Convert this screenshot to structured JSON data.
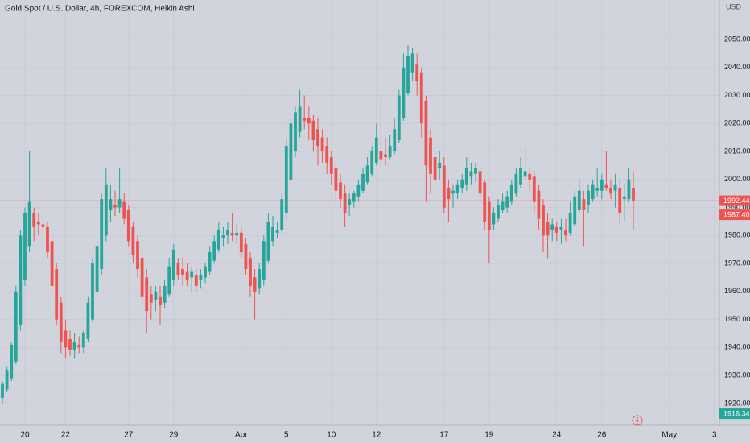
{
  "chart_data": {
    "type": "candlestick",
    "title": "Gold Spot / U.S. Dollar, 4h, FOREXCOM, Heikin Ashi",
    "currency": "USD",
    "up_color": "#26a69a",
    "down_color": "#ef5350",
    "grid": true,
    "ylim": [
      1914.5,
      2064.1
    ],
    "yticks": [
      {
        "value": 1920,
        "label": "1920.00"
      },
      {
        "value": 1930,
        "label": "1930.00"
      },
      {
        "value": 1940,
        "label": "1940.00"
      },
      {
        "value": 1950,
        "label": "1950.00"
      },
      {
        "value": 1960,
        "label": "1960.00"
      },
      {
        "value": 1970,
        "label": "1970.00"
      },
      {
        "value": 1980,
        "label": "1980.00"
      },
      {
        "value": 1990,
        "label": "1990.00"
      },
      {
        "value": 2000,
        "label": "2000.00"
      },
      {
        "value": 2010,
        "label": "2010.00"
      },
      {
        "value": 2020,
        "label": "2020.00"
      },
      {
        "value": 2030,
        "label": "2030.00"
      },
      {
        "value": 2040,
        "label": "2040.00"
      },
      {
        "value": 2050,
        "label": "2050.00"
      }
    ],
    "xticks": [
      {
        "value": 5,
        "label": "20"
      },
      {
        "value": 14,
        "label": "22"
      },
      {
        "value": 28,
        "label": "27"
      },
      {
        "value": 38,
        "label": "29"
      },
      {
        "value": 53,
        "label": "Apr"
      },
      {
        "value": 63,
        "label": "5"
      },
      {
        "value": 73,
        "label": "10"
      },
      {
        "value": 83,
        "label": "12"
      },
      {
        "value": 98,
        "label": "17"
      },
      {
        "value": 108,
        "label": "19"
      },
      {
        "value": 123,
        "label": "24"
      },
      {
        "value": 133,
        "label": "26"
      },
      {
        "value": 148,
        "label": "May"
      },
      {
        "value": 158,
        "label": "3"
      }
    ],
    "price_labels": [
      {
        "value": 1992.44,
        "label": "1992.44",
        "color": "#ef5350",
        "line": true
      },
      {
        "value": 1987.4,
        "label": "1987.40",
        "color": "#ef5350"
      },
      {
        "value": 1916.34,
        "label": "1916.34",
        "color": "#26a69a"
      }
    ],
    "ohlc": [
      [
        1922,
        1928,
        1920,
        1927
      ],
      [
        1925,
        1933,
        1924,
        1932
      ],
      [
        1929,
        1942,
        1928,
        1941
      ],
      [
        1935,
        1962,
        1934,
        1960
      ],
      [
        1948,
        1982,
        1946,
        1980
      ],
      [
        1964,
        1990,
        1962,
        1988
      ],
      [
        1976,
        2010,
        1974,
        1992
      ],
      [
        1988,
        1990,
        1978,
        1983
      ],
      [
        1985,
        1988,
        1980,
        1984
      ],
      [
        1984,
        1987,
        1980,
        1983
      ],
      [
        1983,
        1985,
        1972,
        1974
      ],
      [
        1978,
        1980,
        1960,
        1962
      ],
      [
        1968,
        1970,
        1948,
        1950
      ],
      [
        1956,
        1958,
        1938,
        1942
      ],
      [
        1946,
        1950,
        1936,
        1940
      ],
      [
        1943,
        1946,
        1937,
        1939
      ],
      [
        1939,
        1945,
        1936,
        1942
      ],
      [
        1941,
        1944,
        1938,
        1940
      ],
      [
        1940,
        1946,
        1938,
        1945
      ],
      [
        1943,
        1958,
        1942,
        1956
      ],
      [
        1950,
        1972,
        1949,
        1970
      ],
      [
        1960,
        1978,
        1958,
        1976
      ],
      [
        1968,
        1995,
        1966,
        1993
      ],
      [
        1980,
        2004,
        1978,
        1998
      ],
      [
        1989,
        1998,
        1985,
        1993
      ],
      [
        1991,
        1996,
        1987,
        1990
      ],
      [
        1990,
        2004,
        1988,
        1993
      ],
      [
        1992,
        1995,
        1984,
        1986
      ],
      [
        1989,
        1991,
        1976,
        1978
      ],
      [
        1983,
        1985,
        1970,
        1973
      ],
      [
        1978,
        1980,
        1965,
        1968
      ],
      [
        1972,
        1974,
        1955,
        1958
      ],
      [
        1965,
        1968,
        1945,
        1953
      ],
      [
        1959,
        1962,
        1950,
        1956
      ],
      [
        1957,
        1962,
        1953,
        1960
      ],
      [
        1958,
        1962,
        1948,
        1955
      ],
      [
        1956,
        1964,
        1954,
        1962
      ],
      [
        1959,
        1972,
        1958,
        1969
      ],
      [
        1964,
        1977,
        1962,
        1975
      ],
      [
        1970,
        1972,
        1964,
        1966
      ],
      [
        1968,
        1972,
        1962,
        1966
      ],
      [
        1967,
        1970,
        1962,
        1964
      ],
      [
        1965,
        1969,
        1960,
        1967
      ],
      [
        1966,
        1968,
        1960,
        1962
      ],
      [
        1964,
        1968,
        1961,
        1966
      ],
      [
        1965,
        1970,
        1963,
        1969
      ],
      [
        1967,
        1976,
        1966,
        1974
      ],
      [
        1971,
        1980,
        1970,
        1978
      ],
      [
        1975,
        1985,
        1974,
        1982
      ],
      [
        1979,
        1983,
        1976,
        1980
      ],
      [
        1980,
        1985,
        1977,
        1982
      ],
      [
        1981,
        1988,
        1978,
        1980
      ],
      [
        1980,
        1984,
        1977,
        1981
      ],
      [
        1981,
        1983,
        1972,
        1974
      ],
      [
        1977,
        1979,
        1966,
        1968
      ],
      [
        1972,
        1974,
        1958,
        1962
      ],
      [
        1965,
        1968,
        1950,
        1960
      ],
      [
        1961,
        1970,
        1959,
        1968
      ],
      [
        1964,
        1980,
        1962,
        1978
      ],
      [
        1971,
        1988,
        1970,
        1985
      ],
      [
        1978,
        1987,
        1976,
        1983
      ],
      [
        1981,
        1985,
        1979,
        1982
      ],
      [
        1982,
        1995,
        1981,
        1993
      ],
      [
        1988,
        2015,
        1986,
        2012
      ],
      [
        2000,
        2022,
        1998,
        2020
      ],
      [
        2010,
        2026,
        2008,
        2024
      ],
      [
        2017,
        2032,
        2015,
        2026
      ],
      [
        2022,
        2030,
        2018,
        2021
      ],
      [
        2022,
        2026,
        2014,
        2020
      ],
      [
        2021,
        2023,
        2010,
        2014
      ],
      [
        2018,
        2022,
        2005,
        2012
      ],
      [
        2015,
        2018,
        2006,
        2010
      ],
      [
        2012,
        2015,
        2002,
        2006
      ],
      [
        2008,
        2010,
        1998,
        2002
      ],
      [
        2004,
        2006,
        1992,
        1996
      ],
      [
        1999,
        2002,
        1990,
        1993
      ],
      [
        1995,
        1998,
        1983,
        1988
      ],
      [
        1991,
        1995,
        1987,
        1993
      ],
      [
        1992,
        1996,
        1990,
        1995
      ],
      [
        1994,
        2000,
        1992,
        1998
      ],
      [
        1996,
        2004,
        1995,
        2002
      ],
      [
        1999,
        2008,
        1998,
        2005
      ],
      [
        2002,
        2012,
        2001,
        2010
      ],
      [
        2006,
        2020,
        2005,
        2015
      ],
      [
        2010,
        2028,
        2004,
        2007
      ],
      [
        2009,
        2015,
        2005,
        2008
      ],
      [
        2008,
        2016,
        2007,
        2012
      ],
      [
        2010,
        2022,
        2009,
        2018
      ],
      [
        2014,
        2032,
        2013,
        2030
      ],
      [
        2022,
        2045,
        2021,
        2040
      ],
      [
        2031,
        2048,
        2030,
        2044
      ],
      [
        2038,
        2047,
        2035,
        2045
      ],
      [
        2041,
        2045,
        2030,
        2035
      ],
      [
        2038,
        2040,
        2015,
        2020
      ],
      [
        2028,
        2030,
        1992,
        2005
      ],
      [
        2015,
        2018,
        1995,
        2002
      ],
      [
        2008,
        2010,
        1998,
        2000
      ],
      [
        2004,
        2010,
        2000,
        2006
      ],
      [
        2005,
        2008,
        1988,
        1990
      ],
      [
        1997,
        2000,
        1985,
        1993
      ],
      [
        1995,
        1998,
        1990,
        1996
      ],
      [
        1995,
        2000,
        1993,
        1998
      ],
      [
        1997,
        2002,
        1995,
        2000
      ],
      [
        1998,
        2008,
        1996,
        2004
      ],
      [
        2001,
        2006,
        1998,
        2003
      ],
      [
        2002,
        2006,
        1999,
        2004
      ],
      [
        2003,
        2004,
        1992,
        1995
      ],
      [
        1999,
        2000,
        1982,
        1985
      ],
      [
        1992,
        1994,
        1970,
        1982
      ],
      [
        1984,
        1990,
        1982,
        1988
      ],
      [
        1986,
        1993,
        1985,
        1991
      ],
      [
        1989,
        1995,
        1988,
        1992
      ],
      [
        1990,
        1996,
        1988,
        1994
      ],
      [
        1992,
        2000,
        1991,
        1998
      ],
      [
        1995,
        2004,
        1994,
        2002
      ],
      [
        1998,
        2008,
        1997,
        2004
      ],
      [
        2001,
        2012,
        2000,
        2003
      ],
      [
        2002,
        2004,
        1996,
        2000
      ],
      [
        2001,
        2003,
        1988,
        1992
      ],
      [
        1996,
        1998,
        1982,
        1986
      ],
      [
        1991,
        1993,
        1974,
        1980
      ],
      [
        1985,
        1988,
        1972,
        1980
      ],
      [
        1982,
        1986,
        1978,
        1984
      ],
      [
        1983,
        1985,
        1978,
        1981
      ],
      [
        1982,
        1986,
        1977,
        1983
      ],
      [
        1982,
        1986,
        1978,
        1980
      ],
      [
        1981,
        1992,
        1980,
        1988
      ],
      [
        1984,
        1996,
        1983,
        1994
      ],
      [
        1989,
        2000,
        1988,
        1996
      ],
      [
        1993,
        1996,
        1976,
        1989
      ],
      [
        1991,
        1998,
        1988,
        1996
      ],
      [
        1993,
        2000,
        1992,
        1998
      ],
      [
        1996,
        2004,
        1994,
        1997
      ],
      [
        1996,
        2002,
        1993,
        2000
      ],
      [
        1998,
        2010,
        1996,
        1997
      ],
      [
        1997,
        2000,
        1993,
        1995
      ],
      [
        1996,
        2002,
        1990,
        1998
      ],
      [
        1997,
        2000,
        1984,
        1988
      ],
      [
        1993,
        1998,
        1985,
        1994
      ],
      [
        1993,
        2004,
        1992,
        2000
      ],
      [
        1997,
        2003,
        1982,
        1992.44
      ]
    ]
  }
}
